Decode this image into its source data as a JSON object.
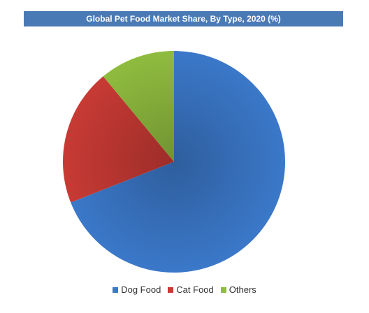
{
  "chart_data": {
    "type": "pie",
    "title": "Global Pet Food Market Share, By Type, 2020 (%)",
    "slices": [
      {
        "label": "Dog Food",
        "value": 69,
        "color": "#3b78c9"
      },
      {
        "label": "Cat Food",
        "value": 20,
        "color": "#c83a34"
      },
      {
        "label": "Others",
        "value": 11,
        "color": "#8fbc3f"
      }
    ],
    "legend_position": "bottom",
    "start_angle": "12 o'clock",
    "direction": "clockwise"
  }
}
